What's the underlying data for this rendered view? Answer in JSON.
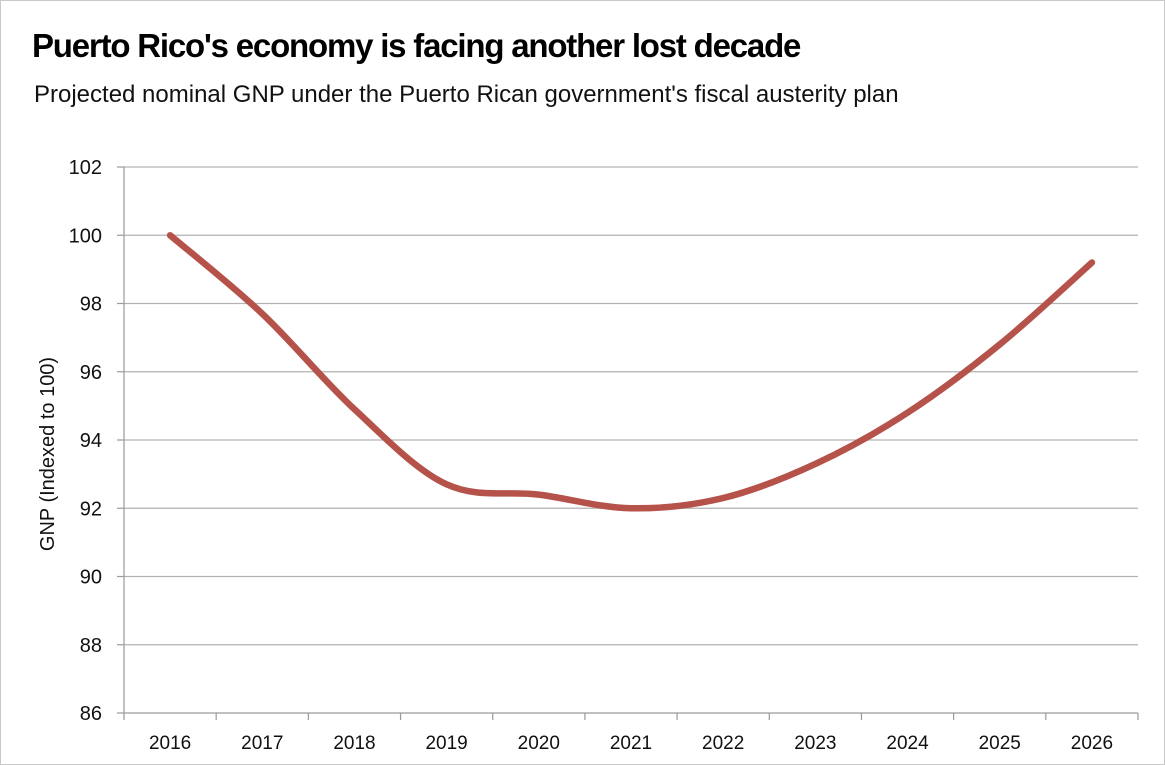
{
  "chart_data": {
    "type": "line",
    "title": "Puerto Rico's economy is facing another lost decade",
    "subtitle": "Projected nominal GNP under the Puerto Rican government's fiscal austerity plan",
    "xlabel": "",
    "ylabel": "GNP (Indexed to 100)",
    "categories": [
      "2016",
      "2017",
      "2018",
      "2019",
      "2020",
      "2021",
      "2022",
      "2023",
      "2024",
      "2025",
      "2026"
    ],
    "series": [
      {
        "values": [
          100,
          97.7,
          94.9,
          92.7,
          92.4,
          92.0,
          92.3,
          93.3,
          94.8,
          96.8,
          99.2
        ],
        "color": "#b5524a"
      }
    ],
    "ylim": [
      86,
      102
    ],
    "yticks": [
      86,
      88,
      90,
      92,
      94,
      96,
      98,
      100,
      102
    ],
    "grid": true,
    "legend": "none",
    "colors": {
      "line": "#b5524a",
      "grid": "#b3b3b3",
      "axis": "#9a9a9a"
    }
  }
}
